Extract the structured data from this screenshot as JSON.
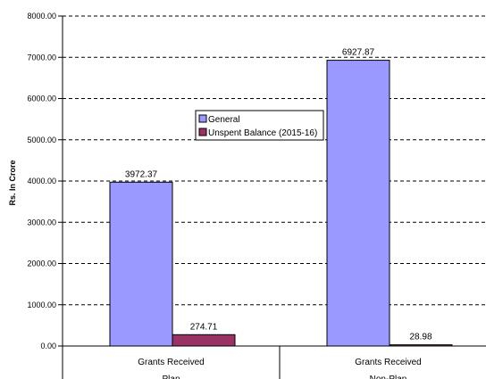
{
  "chart_data": {
    "type": "bar",
    "ylabel": "Rs. In Crore",
    "ylim": [
      0,
      8000
    ],
    "y_ticks": [
      "0.00",
      "1000.00",
      "2000.00",
      "3000.00",
      "4000.00",
      "5000.00",
      "6000.00",
      "7000.00",
      "8000.00"
    ],
    "grid": true,
    "legend_position": "center",
    "categories": [
      {
        "line1": "Grants Received",
        "line2": "Plan"
      },
      {
        "line1": "Grants Received",
        "line2": "Non-Plan"
      }
    ],
    "series": [
      {
        "name": "General",
        "color": "#9999ff",
        "values": [
          3972.37,
          6927.87
        ],
        "labels": [
          "3972.37",
          "6927.87"
        ]
      },
      {
        "name": "Unspent Balance (2015-16)",
        "color": "#993366",
        "values": [
          274.71,
          28.98
        ],
        "labels": [
          "274.71",
          "28.98"
        ]
      }
    ]
  }
}
